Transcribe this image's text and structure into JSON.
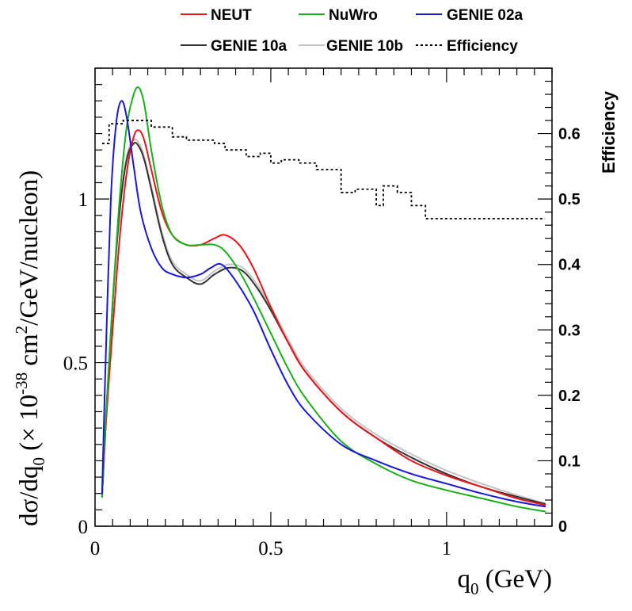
{
  "chart_data": {
    "type": "line",
    "title": "",
    "xlabel": {
      "main": "q",
      "sub": "0",
      "unit": " (GeV)"
    },
    "ylabel": {
      "a": "dσ/dq",
      "b": "0",
      "c": " (× 10",
      "d": "-38",
      "e": " cm",
      "f": "2",
      "g": "/GeV/nucleon)"
    },
    "y2label": "Efficiency",
    "xlim": [
      0,
      1.3
    ],
    "ylim": [
      0,
      1.4
    ],
    "y2lim": [
      0,
      0.7
    ],
    "x_ticks": [
      0,
      0.5,
      1
    ],
    "x_tick_labels": [
      "0",
      "0.5",
      "1"
    ],
    "y_ticks": [
      0,
      0.5,
      1
    ],
    "y_tick_labels": [
      "0",
      "0.5",
      "1"
    ],
    "y2_ticks": [
      0,
      0.1,
      0.2,
      0.3,
      0.4,
      0.5,
      0.6
    ],
    "y2_tick_labels": [
      "0",
      "0.1",
      "0.2",
      "0.3",
      "0.4",
      "0.5",
      "0.6"
    ],
    "legend_position": "top",
    "series": [
      {
        "name": "NEUT",
        "color": "#e8161b",
        "style": "solid",
        "x": [
          0.02,
          0.03,
          0.05,
          0.07,
          0.09,
          0.11,
          0.125,
          0.14,
          0.16,
          0.19,
          0.22,
          0.26,
          0.3,
          0.34,
          0.37,
          0.41,
          0.45,
          0.5,
          0.55,
          0.6,
          0.7,
          0.8,
          0.9,
          1.0,
          1.1,
          1.2,
          1.28
        ],
        "y": [
          0.09,
          0.3,
          0.6,
          0.88,
          1.08,
          1.19,
          1.21,
          1.18,
          1.09,
          0.96,
          0.89,
          0.86,
          0.86,
          0.88,
          0.89,
          0.86,
          0.79,
          0.67,
          0.56,
          0.47,
          0.35,
          0.27,
          0.2,
          0.155,
          0.12,
          0.085,
          0.065
        ]
      },
      {
        "name": "NuWro",
        "color": "#1ab01a",
        "style": "solid",
        "x": [
          0.02,
          0.03,
          0.05,
          0.07,
          0.09,
          0.11,
          0.125,
          0.14,
          0.16,
          0.19,
          0.22,
          0.26,
          0.3,
          0.34,
          0.37,
          0.41,
          0.45,
          0.5,
          0.55,
          0.6,
          0.7,
          0.8,
          0.9,
          1.0,
          1.1,
          1.2,
          1.28
        ],
        "y": [
          0.09,
          0.32,
          0.68,
          1.0,
          1.22,
          1.32,
          1.34,
          1.29,
          1.15,
          0.98,
          0.89,
          0.86,
          0.86,
          0.86,
          0.84,
          0.78,
          0.7,
          0.59,
          0.48,
          0.39,
          0.26,
          0.19,
          0.14,
          0.11,
          0.085,
          0.06,
          0.045
        ]
      },
      {
        "name": "GENIE 02a",
        "color": "#1818d8",
        "style": "solid",
        "x": [
          0.02,
          0.03,
          0.045,
          0.06,
          0.075,
          0.09,
          0.11,
          0.13,
          0.16,
          0.19,
          0.22,
          0.26,
          0.3,
          0.33,
          0.36,
          0.4,
          0.45,
          0.5,
          0.55,
          0.6,
          0.7,
          0.8,
          0.9,
          1.0,
          1.1,
          1.2,
          1.28
        ],
        "y": [
          0.1,
          0.5,
          1.0,
          1.23,
          1.3,
          1.25,
          1.1,
          0.96,
          0.85,
          0.79,
          0.77,
          0.76,
          0.77,
          0.79,
          0.8,
          0.75,
          0.66,
          0.54,
          0.43,
          0.35,
          0.25,
          0.2,
          0.16,
          0.13,
          0.1,
          0.075,
          0.06
        ]
      },
      {
        "name": "GENIE 10a",
        "color": "#333333",
        "style": "solid",
        "x": [
          0.02,
          0.03,
          0.05,
          0.07,
          0.09,
          0.11,
          0.125,
          0.14,
          0.16,
          0.19,
          0.22,
          0.26,
          0.3,
          0.34,
          0.38,
          0.42,
          0.46,
          0.5,
          0.55,
          0.6,
          0.7,
          0.8,
          0.9,
          1.0,
          1.1,
          1.2,
          1.28
        ],
        "y": [
          0.09,
          0.3,
          0.68,
          0.96,
          1.12,
          1.17,
          1.16,
          1.12,
          1.03,
          0.89,
          0.8,
          0.76,
          0.74,
          0.77,
          0.79,
          0.78,
          0.73,
          0.66,
          0.56,
          0.47,
          0.35,
          0.27,
          0.21,
          0.16,
          0.12,
          0.09,
          0.068
        ]
      },
      {
        "name": "GENIE 10b",
        "color": "#c4c4c4",
        "style": "solid",
        "x": [
          0.02,
          0.03,
          0.05,
          0.07,
          0.09,
          0.11,
          0.125,
          0.14,
          0.16,
          0.19,
          0.22,
          0.26,
          0.3,
          0.34,
          0.38,
          0.42,
          0.46,
          0.5,
          0.55,
          0.6,
          0.7,
          0.8,
          0.9,
          1.0,
          1.1,
          1.2,
          1.28
        ],
        "y": [
          0.09,
          0.3,
          0.69,
          0.97,
          1.13,
          1.18,
          1.17,
          1.13,
          1.04,
          0.9,
          0.81,
          0.77,
          0.75,
          0.78,
          0.8,
          0.79,
          0.74,
          0.67,
          0.57,
          0.48,
          0.36,
          0.28,
          0.22,
          0.17,
          0.13,
          0.095,
          0.07
        ]
      }
    ],
    "efficiency": {
      "name": "Efficiency",
      "style": "dashed",
      "color": "#000000",
      "bin_edges": [
        0.02,
        0.04,
        0.08,
        0.16,
        0.22,
        0.26,
        0.34,
        0.37,
        0.43,
        0.47,
        0.5,
        0.53,
        0.58,
        0.63,
        0.69,
        0.7,
        0.74,
        0.8,
        0.82,
        0.86,
        0.9,
        0.94,
        1.0,
        1.28
      ],
      "values": [
        0.585,
        0.615,
        0.62,
        0.61,
        0.595,
        0.59,
        0.585,
        0.575,
        0.565,
        0.57,
        0.555,
        0.56,
        0.555,
        0.545,
        0.545,
        0.51,
        0.515,
        0.49,
        0.52,
        0.51,
        0.49,
        0.47,
        0.47
      ]
    }
  }
}
